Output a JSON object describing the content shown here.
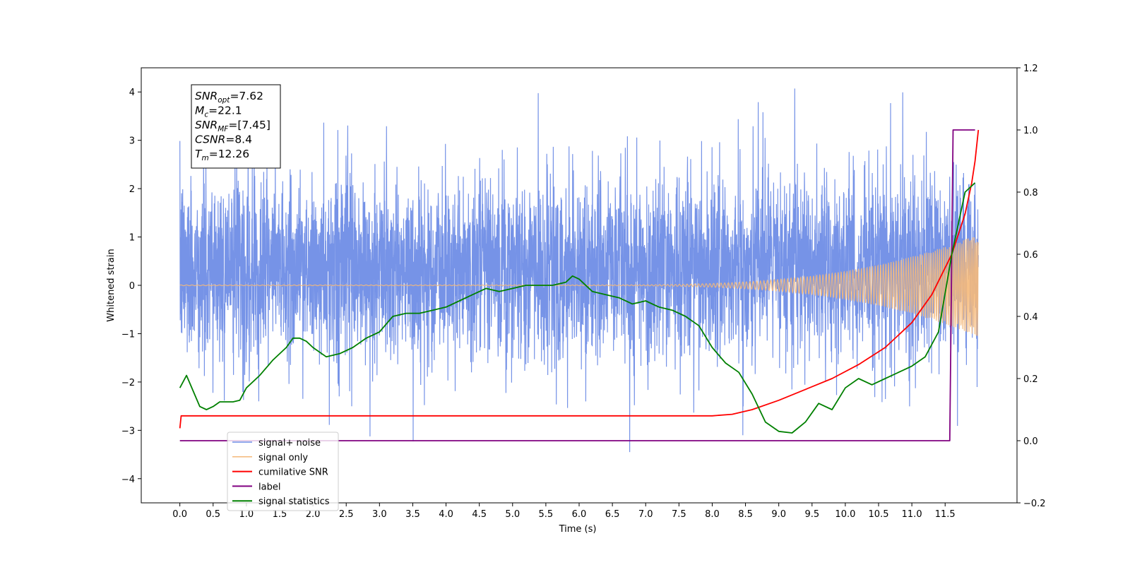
{
  "chart_data": {
    "type": "line",
    "xlabel": "Time (s)",
    "ylabel": "Whitened strain",
    "xlim": [
      -0.58,
      12.58
    ],
    "ylim": [
      -4.5,
      4.5
    ],
    "y2lim": [
      -0.2,
      1.2
    ],
    "x_ticks": [
      0.0,
      0.5,
      1.0,
      1.5,
      2.0,
      2.5,
      3.0,
      3.5,
      4.0,
      4.5,
      5.0,
      5.5,
      6.0,
      6.5,
      7.0,
      7.5,
      8.0,
      8.5,
      9.0,
      9.5,
      10.0,
      10.5,
      11.0,
      11.5
    ],
    "x_tick_labels": [
      "0.0",
      "0.5",
      "1.0",
      "1.5",
      "2.0",
      "2.5",
      "3.0",
      "3.5",
      "4.0",
      "4.5",
      "5.0",
      "5.5",
      "6.0",
      "6.5",
      "7.0",
      "7.5",
      "8.0",
      "8.5",
      "9.0",
      "9.5",
      "10.0",
      "10.5",
      "11.0",
      "11.5"
    ],
    "y_ticks": [
      4,
      3,
      2,
      1,
      0,
      -1,
      -2,
      -3,
      -4
    ],
    "y_tick_labels": [
      "4",
      "3",
      "2",
      "1",
      "0",
      "−1",
      "−2",
      "−3",
      "−4"
    ],
    "y2_ticks": [
      1.2,
      1.0,
      0.8,
      0.6,
      0.4,
      0.2,
      0.0,
      -0.2
    ],
    "y2_tick_labels": [
      "1.2",
      "1.0",
      "0.8",
      "0.6",
      "0.4",
      "0.2",
      "0.0",
      "−0.2"
    ],
    "grid": false,
    "legend_position": "lower-left",
    "annotation": {
      "lines": [
        {
          "main": "SNR",
          "sub": "opt",
          "value": "=7.62"
        },
        {
          "main": "M",
          "sub": "c",
          "value": "=22.1"
        },
        {
          "main": "SNR",
          "sub": "MF",
          "value": "=[7.45]"
        },
        {
          "main": "CSNR",
          "sub": "",
          "value": "=8.4"
        },
        {
          "main": "T",
          "sub": "m",
          "value": "=12.26"
        }
      ]
    },
    "series": [
      {
        "name": "signal+ noise",
        "color": "#6f8de6",
        "axis": "left",
        "kind": "noise",
        "description_values": {
          "x_start": 0.0,
          "x_end": 12.0,
          "typical_low": -2.0,
          "typical_high": 2.0,
          "peak_max": 4.07,
          "peak_min": -4.1
        }
      },
      {
        "name": "signal only",
        "color": "#f5b97a",
        "axis": "left",
        "kind": "chirp",
        "description_values": {
          "x_start": 0.0,
          "x_end": 12.0,
          "final_amplitude": 1.05
        }
      },
      {
        "name": "cumilative SNR",
        "color": "#ff0000",
        "axis": "right",
        "x": [
          0.0,
          0.02,
          0.5,
          1.0,
          2.0,
          3.0,
          4.0,
          5.0,
          6.0,
          7.0,
          8.0,
          8.3,
          8.6,
          9.0,
          9.4,
          9.8,
          10.2,
          10.6,
          11.0,
          11.3,
          11.6,
          11.8,
          11.9,
          11.95,
          12.0
        ],
        "y": [
          0.04,
          0.08,
          0.08,
          0.08,
          0.08,
          0.08,
          0.08,
          0.08,
          0.08,
          0.08,
          0.08,
          0.085,
          0.1,
          0.13,
          0.165,
          0.2,
          0.245,
          0.3,
          0.38,
          0.47,
          0.6,
          0.73,
          0.83,
          0.9,
          1.0
        ]
      },
      {
        "name": "label",
        "color": "#800080",
        "axis": "right",
        "x": [
          0.0,
          11.57,
          11.62,
          11.95
        ],
        "y": [
          0.0,
          0.0,
          1.0,
          1.0
        ]
      },
      {
        "name": "signal statistics",
        "color": "#008000",
        "axis": "right",
        "x": [
          0.0,
          0.1,
          0.2,
          0.3,
          0.4,
          0.5,
          0.6,
          0.7,
          0.8,
          0.9,
          1.0,
          1.2,
          1.4,
          1.6,
          1.7,
          1.8,
          1.9,
          2.0,
          2.2,
          2.4,
          2.6,
          2.8,
          3.0,
          3.2,
          3.4,
          3.6,
          3.8,
          4.0,
          4.2,
          4.4,
          4.6,
          4.8,
          5.0,
          5.2,
          5.4,
          5.6,
          5.8,
          5.9,
          6.0,
          6.2,
          6.4,
          6.6,
          6.8,
          7.0,
          7.2,
          7.4,
          7.6,
          7.8,
          8.0,
          8.2,
          8.4,
          8.6,
          8.8,
          9.0,
          9.2,
          9.4,
          9.6,
          9.8,
          10.0,
          10.2,
          10.4,
          10.6,
          10.8,
          11.0,
          11.2,
          11.4,
          11.6,
          11.8,
          11.95
        ],
        "y": [
          0.17,
          0.21,
          0.16,
          0.11,
          0.1,
          0.11,
          0.125,
          0.125,
          0.125,
          0.13,
          0.17,
          0.21,
          0.26,
          0.3,
          0.33,
          0.33,
          0.32,
          0.3,
          0.27,
          0.28,
          0.3,
          0.33,
          0.35,
          0.4,
          0.41,
          0.41,
          0.42,
          0.43,
          0.45,
          0.47,
          0.49,
          0.48,
          0.49,
          0.5,
          0.5,
          0.5,
          0.51,
          0.53,
          0.52,
          0.48,
          0.47,
          0.46,
          0.44,
          0.45,
          0.43,
          0.42,
          0.4,
          0.37,
          0.3,
          0.25,
          0.22,
          0.15,
          0.06,
          0.03,
          0.025,
          0.06,
          0.12,
          0.1,
          0.17,
          0.2,
          0.18,
          0.2,
          0.22,
          0.24,
          0.27,
          0.35,
          0.6,
          0.8,
          0.83
        ]
      }
    ]
  }
}
